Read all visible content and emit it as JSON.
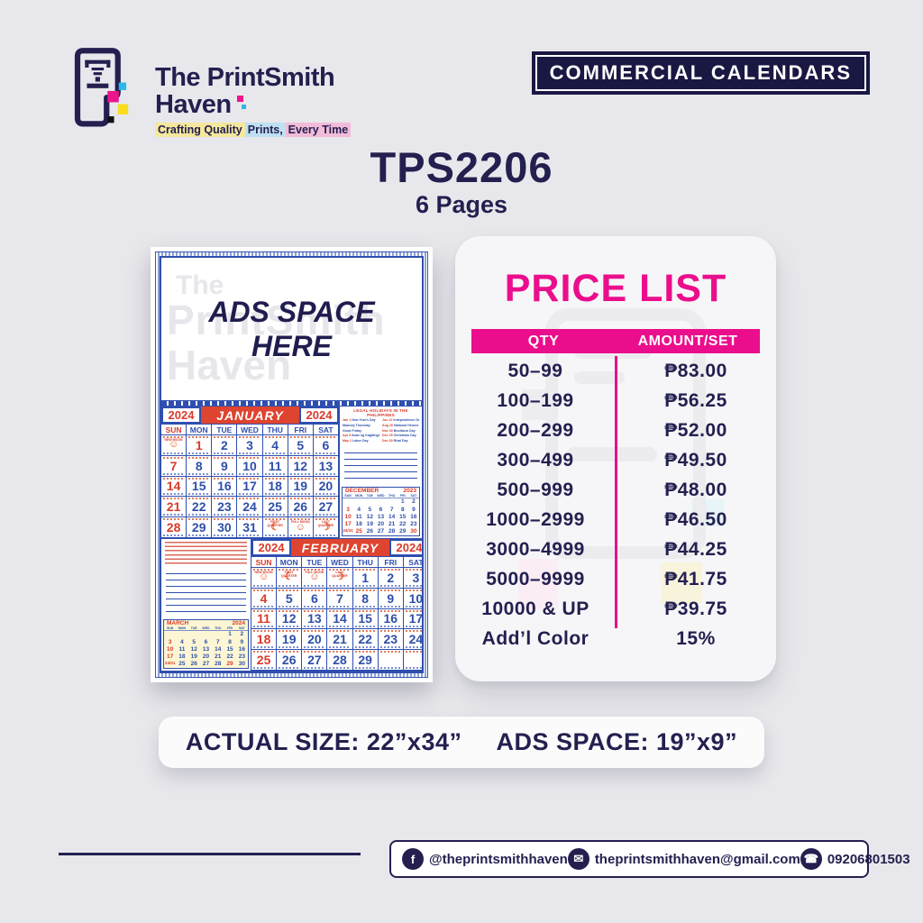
{
  "brand": {
    "name_line1": "The PrintSmith",
    "name_line2": "Haven",
    "tagline": [
      {
        "text": "Crafting Quality",
        "bg": "#F5E79C"
      },
      {
        "text": " Prints,",
        "bg": "#BFE0F2"
      },
      {
        "text": " Every Time",
        "bg": "#F2BBD8"
      }
    ]
  },
  "badge": {
    "label": "COMMERCIAL CALENDARS"
  },
  "product": {
    "code": "TPS2206",
    "pages": "6 Pages"
  },
  "poster": {
    "ads_line1": "ADS SPACE",
    "ads_line2": "HERE",
    "watermark": [
      "The",
      "PrintSmith",
      "Haven"
    ],
    "weekdays": [
      "SUN",
      "MON",
      "TUE",
      "WED",
      "THU",
      "FRI",
      "SAT"
    ],
    "january": {
      "year_left": "2024",
      "name": "JANUARY",
      "year_right": "2024",
      "weeks": [
        [
          {
            "s": "☺",
            "lbl": "NEW MOON"
          },
          {
            "d": "1",
            "r": true
          },
          {
            "d": "2"
          },
          {
            "d": "3"
          },
          {
            "d": "4"
          },
          {
            "d": "5"
          },
          {
            "d": "6"
          }
        ],
        [
          {
            "d": "7",
            "r": true
          },
          {
            "d": "8"
          },
          {
            "d": "9"
          },
          {
            "d": "10"
          },
          {
            "d": "11"
          },
          {
            "d": "12"
          },
          {
            "d": "13"
          }
        ],
        [
          {
            "d": "14",
            "r": true
          },
          {
            "d": "15"
          },
          {
            "d": "16"
          },
          {
            "d": "17"
          },
          {
            "d": "18"
          },
          {
            "d": "19"
          },
          {
            "d": "20"
          }
        ],
        [
          {
            "d": "21",
            "r": true
          },
          {
            "d": "22"
          },
          {
            "d": "23"
          },
          {
            "d": "24"
          },
          {
            "d": "25"
          },
          {
            "d": "26"
          },
          {
            "d": "27"
          }
        ],
        [
          {
            "d": "28",
            "r": true
          },
          {
            "d": "29"
          },
          {
            "d": "30"
          },
          {
            "d": "31"
          },
          {
            "s": "☾",
            "lbl": "FIRST QUARTER"
          },
          {
            "s": "☺",
            "lbl": "FULL MOON"
          },
          {
            "s": "☽",
            "lbl": "LAST QUARTER"
          }
        ]
      ]
    },
    "february": {
      "year_left": "2024",
      "name": "FEBRUARY",
      "year_right": "2024",
      "weeks": [
        [
          {
            "s": "☺",
            "lbl": "NEW MOON"
          },
          {
            "s": "☾",
            "lbl": "FIRST QUARTER"
          },
          {
            "s": "☺",
            "lbl": "FULL MOON"
          },
          {
            "s": "☽",
            "lbl": "LAST QUARTER"
          },
          {
            "d": "1"
          },
          {
            "d": "2"
          },
          {
            "d": "3"
          }
        ],
        [
          {
            "d": "4",
            "r": true
          },
          {
            "d": "5"
          },
          {
            "d": "6"
          },
          {
            "d": "7"
          },
          {
            "d": "8"
          },
          {
            "d": "9"
          },
          {
            "d": "10"
          }
        ],
        [
          {
            "d": "11",
            "r": true
          },
          {
            "d": "12"
          },
          {
            "d": "13"
          },
          {
            "d": "14"
          },
          {
            "d": "15"
          },
          {
            "d": "16"
          },
          {
            "d": "17"
          }
        ],
        [
          {
            "d": "18",
            "r": true
          },
          {
            "d": "19"
          },
          {
            "d": "20"
          },
          {
            "d": "21"
          },
          {
            "d": "22"
          },
          {
            "d": "23"
          },
          {
            "d": "24"
          }
        ],
        [
          {
            "d": "25",
            "r": true
          },
          {
            "d": "26"
          },
          {
            "d": "27"
          },
          {
            "d": "28"
          },
          {
            "d": "29"
          },
          {},
          {}
        ]
      ]
    },
    "legal_holidays": {
      "title": "LEGAL HOLIDAYS IN THE PHILIPPINES",
      "col1": [
        {
          "d": "Jan 1",
          "n": "New Year's Day"
        },
        {
          "d": "",
          "n": "Maundy Thursday"
        },
        {
          "d": "",
          "n": "Good Friday"
        },
        {
          "d": "Apr 9",
          "n": "Araw ng Kagitingan"
        },
        {
          "d": "May 1",
          "n": "Labor Day"
        }
      ],
      "col2": [
        {
          "d": "Jun 12",
          "n": "Independence Day"
        },
        {
          "d": "Aug 26",
          "n": "National Heroes Day"
        },
        {
          "d": "Nov 30",
          "n": "Bonifacio Day"
        },
        {
          "d": "Dec 25",
          "n": "Christmas Day"
        },
        {
          "d": "Dec 30",
          "n": "Rizal Day"
        }
      ]
    },
    "december_mini": {
      "name": "DECEMBER",
      "year": "2023",
      "rows": [
        [
          "",
          "",
          "",
          "",
          "",
          "1",
          "2"
        ],
        [
          "3",
          "4",
          "5",
          "6",
          "7",
          "8",
          "9"
        ],
        [
          "10",
          "11",
          "12",
          "13",
          "14",
          "15",
          "16"
        ],
        [
          "17",
          "18",
          "19",
          "20",
          "21",
          "22",
          "23"
        ],
        [
          "24/31",
          "25",
          "26",
          "27",
          "28",
          "29",
          "30"
        ]
      ],
      "red": [
        "3",
        "10",
        "17",
        "24/31",
        "25",
        "30"
      ]
    },
    "march_mini": {
      "name": "MARCH",
      "year": "2024",
      "rows": [
        [
          "",
          "",
          "",
          "",
          "",
          "1",
          "2"
        ],
        [
          "3",
          "4",
          "5",
          "6",
          "7",
          "8",
          "9"
        ],
        [
          "10",
          "11",
          "12",
          "13",
          "14",
          "15",
          "16"
        ],
        [
          "17",
          "18",
          "19",
          "20",
          "21",
          "22",
          "23"
        ],
        [
          "24/31",
          "25",
          "26",
          "27",
          "28",
          "29",
          "30"
        ]
      ],
      "red": [
        "3",
        "10",
        "17",
        "24/31",
        "29"
      ]
    }
  },
  "price_list": {
    "title": "PRICE LIST",
    "col_qty": "QTY",
    "col_amount": "AMOUNT/SET",
    "rows": [
      {
        "qty": "50–99",
        "amount": "₱83.00"
      },
      {
        "qty": "100–199",
        "amount": "₱56.25"
      },
      {
        "qty": "200–299",
        "amount": "₱52.00"
      },
      {
        "qty": "300–499",
        "amount": "₱49.50"
      },
      {
        "qty": "500–999",
        "amount": "₱48.00"
      },
      {
        "qty": "1000–2999",
        "amount": "₱46.50"
      },
      {
        "qty": "3000–4999",
        "amount": "₱44.25"
      },
      {
        "qty": "5000–9999",
        "amount": "₱41.75"
      },
      {
        "qty": "10000 & UP",
        "amount": "₱39.75"
      },
      {
        "qty": "Add’l Color",
        "amount": "15%"
      }
    ],
    "accent": "#EB0E8C"
  },
  "size_bar": {
    "actual": "ACTUAL SIZE: 22”x34”",
    "ads": "ADS SPACE: 19”x9”"
  },
  "footer": {
    "facebook": "@theprintsmithhaven",
    "email": "theprintsmithhaven@gmail.com",
    "phone": "09206801503"
  },
  "icons": {
    "facebook": "f",
    "email": "✉",
    "phone": "☎"
  },
  "colors": {
    "navy": "#232050",
    "pink": "#EB0E8C",
    "cal_blue": "#2E4FA9",
    "cal_red": "#D93A2B",
    "cal_orange": "#E8632C",
    "month_bar_red": "#DE442F"
  }
}
